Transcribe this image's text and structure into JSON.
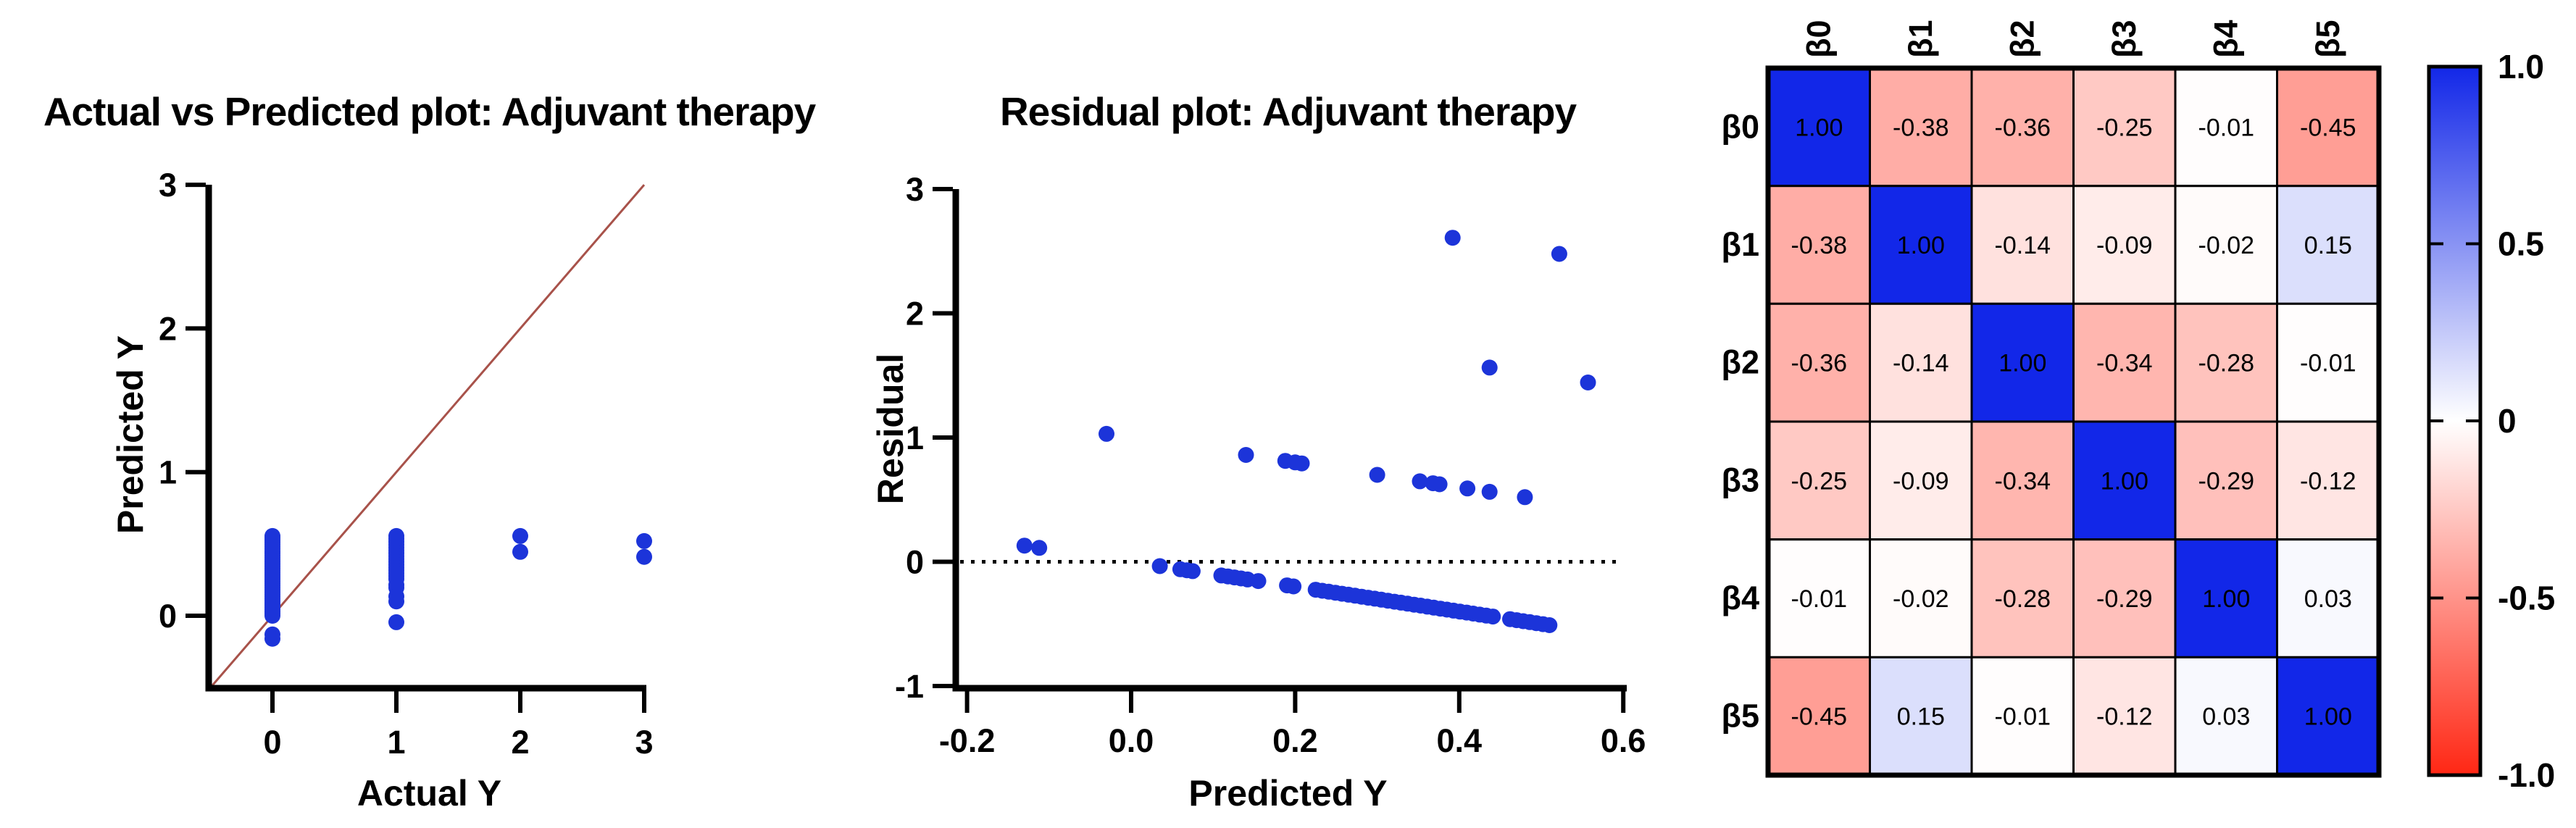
{
  "page": {
    "background": "#ffffff"
  },
  "chart_data": [
    {
      "type": "scatter",
      "name": "actual-vs-predicted",
      "title": "Actual vs Predicted plot: Adjuvant therapy",
      "xlabel": "Actual Y",
      "ylabel": "Predicted Y",
      "xlim": [
        -0.51,
        3.02
      ],
      "ylim": [
        -0.5,
        3.0
      ],
      "xticks": [
        0,
        1,
        2,
        3
      ],
      "xtick_labels": [
        "0",
        "1",
        "2",
        "3"
      ],
      "yticks": [
        0,
        1,
        2,
        3
      ],
      "ytick_labels": [
        "0",
        "1",
        "2",
        "3"
      ],
      "grid": false,
      "identity_line": {
        "x1": -0.5,
        "y1": -0.5,
        "x2": 3.0,
        "y2": 3.0,
        "color": "#a8524a"
      },
      "marker_color": "#1c34d9",
      "points": [
        [
          0,
          0.0
        ],
        [
          0,
          0.015
        ],
        [
          0,
          0.03
        ],
        [
          0,
          0.045
        ],
        [
          0,
          0.06
        ],
        [
          0,
          0.075
        ],
        [
          0,
          0.09
        ],
        [
          0,
          0.105
        ],
        [
          0,
          0.12
        ],
        [
          0,
          0.135
        ],
        [
          0,
          0.15
        ],
        [
          0,
          0.165
        ],
        [
          0,
          0.18
        ],
        [
          0,
          0.195
        ],
        [
          0,
          0.21
        ],
        [
          0,
          0.225
        ],
        [
          0,
          0.24
        ],
        [
          0,
          0.255
        ],
        [
          0,
          0.27
        ],
        [
          0,
          0.285
        ],
        [
          0,
          0.3
        ],
        [
          0,
          0.315
        ],
        [
          0,
          0.33
        ],
        [
          0,
          0.345
        ],
        [
          0,
          0.36
        ],
        [
          0,
          0.375
        ],
        [
          0,
          0.39
        ],
        [
          0,
          0.405
        ],
        [
          0,
          0.42
        ],
        [
          0,
          0.435
        ],
        [
          0,
          0.45
        ],
        [
          0,
          0.465
        ],
        [
          0,
          0.48
        ],
        [
          0,
          0.495
        ],
        [
          0,
          0.51
        ],
        [
          0,
          0.525
        ],
        [
          0,
          0.54
        ],
        [
          0,
          0.555
        ],
        [
          0,
          -0.13
        ],
        [
          0,
          -0.16
        ],
        [
          1,
          0.555
        ],
        [
          1,
          0.535
        ],
        [
          1,
          0.515
        ],
        [
          1,
          0.495
        ],
        [
          1,
          0.475
        ],
        [
          1,
          0.455
        ],
        [
          1,
          0.435
        ],
        [
          1,
          0.415
        ],
        [
          1,
          0.395
        ],
        [
          1,
          0.375
        ],
        [
          1,
          0.355
        ],
        [
          1,
          0.335
        ],
        [
          1,
          0.315
        ],
        [
          1,
          0.295
        ],
        [
          1,
          0.275
        ],
        [
          1,
          0.255
        ],
        [
          1,
          0.215
        ],
        [
          1,
          0.195
        ],
        [
          1,
          0.135
        ],
        [
          1,
          0.1
        ],
        [
          1,
          -0.045
        ],
        [
          2,
          0.445
        ],
        [
          2,
          0.555
        ],
        [
          3,
          0.41
        ],
        [
          3,
          0.52
        ]
      ]
    },
    {
      "type": "scatter",
      "name": "residual",
      "title": "Residual plot: Adjuvant therapy",
      "xlabel": "Predicted Y",
      "ylabel": "Residual",
      "xlim": [
        -0.21,
        0.61
      ],
      "ylim": [
        -1.0,
        3.0
      ],
      "xticks": [
        -0.2,
        0.0,
        0.2,
        0.4,
        0.6
      ],
      "xtick_labels": [
        "-0.2",
        "0.0",
        "0.2",
        "0.4",
        "0.6"
      ],
      "yticks": [
        -1,
        0,
        1,
        2,
        3
      ],
      "ytick_labels": [
        "-1",
        "0",
        "1",
        "2",
        "3"
      ],
      "grid": false,
      "zero_line": {
        "y": 0,
        "style": "dotted",
        "color": "#000000"
      },
      "marker_color": "#1c34d9",
      "points": [
        [
          -0.13,
          0.13
        ],
        [
          -0.112,
          0.112
        ],
        [
          0.035,
          -0.035
        ],
        [
          0.06,
          -0.06
        ],
        [
          0.068,
          -0.068
        ],
        [
          0.075,
          -0.075
        ],
        [
          0.11,
          -0.11
        ],
        [
          0.118,
          -0.118
        ],
        [
          0.126,
          -0.126
        ],
        [
          0.134,
          -0.134
        ],
        [
          0.142,
          -0.142
        ],
        [
          0.155,
          -0.155
        ],
        [
          0.19,
          -0.19
        ],
        [
          0.198,
          -0.198
        ],
        [
          0.225,
          -0.225
        ],
        [
          0.233,
          -0.233
        ],
        [
          0.241,
          -0.241
        ],
        [
          0.249,
          -0.249
        ],
        [
          0.257,
          -0.257
        ],
        [
          0.265,
          -0.265
        ],
        [
          0.273,
          -0.273
        ],
        [
          0.281,
          -0.281
        ],
        [
          0.289,
          -0.289
        ],
        [
          0.297,
          -0.297
        ],
        [
          0.305,
          -0.305
        ],
        [
          0.313,
          -0.313
        ],
        [
          0.321,
          -0.321
        ],
        [
          0.329,
          -0.329
        ],
        [
          0.337,
          -0.337
        ],
        [
          0.345,
          -0.345
        ],
        [
          0.353,
          -0.353
        ],
        [
          0.361,
          -0.361
        ],
        [
          0.369,
          -0.369
        ],
        [
          0.377,
          -0.377
        ],
        [
          0.385,
          -0.385
        ],
        [
          0.393,
          -0.393
        ],
        [
          0.401,
          -0.401
        ],
        [
          0.409,
          -0.409
        ],
        [
          0.417,
          -0.417
        ],
        [
          0.425,
          -0.425
        ],
        [
          0.433,
          -0.433
        ],
        [
          0.441,
          -0.441
        ],
        [
          0.462,
          -0.462
        ],
        [
          0.47,
          -0.47
        ],
        [
          0.478,
          -0.478
        ],
        [
          0.486,
          -0.486
        ],
        [
          0.494,
          -0.494
        ],
        [
          0.502,
          -0.502
        ],
        [
          0.51,
          -0.51
        ],
        [
          -0.03,
          1.03
        ],
        [
          0.14,
          0.86
        ],
        [
          0.188,
          0.812
        ],
        [
          0.2,
          0.8
        ],
        [
          0.208,
          0.792
        ],
        [
          0.3,
          0.7
        ],
        [
          0.352,
          0.648
        ],
        [
          0.368,
          0.632
        ],
        [
          0.376,
          0.624
        ],
        [
          0.41,
          0.59
        ],
        [
          0.437,
          0.563
        ],
        [
          0.48,
          0.52
        ],
        [
          0.437,
          1.563
        ],
        [
          0.557,
          1.443
        ],
        [
          0.392,
          2.608
        ],
        [
          0.522,
          2.478
        ]
      ]
    },
    {
      "type": "heatmap",
      "name": "coefficient-correlation-matrix",
      "labels": [
        "β0",
        "β1",
        "β2",
        "β3",
        "β4",
        "β5"
      ],
      "matrix": [
        [
          1.0,
          -0.38,
          -0.36,
          -0.25,
          -0.01,
          -0.45
        ],
        [
          -0.38,
          1.0,
          -0.14,
          -0.09,
          -0.02,
          0.15
        ],
        [
          -0.36,
          -0.14,
          1.0,
          -0.34,
          -0.28,
          -0.01
        ],
        [
          -0.25,
          -0.09,
          -0.34,
          1.0,
          -0.29,
          -0.12
        ],
        [
          -0.01,
          -0.02,
          -0.28,
          -0.29,
          1.0,
          0.03
        ],
        [
          -0.45,
          0.15,
          -0.01,
          -0.12,
          0.03,
          1.0
        ]
      ],
      "colorbar": {
        "min": -1,
        "max": 1,
        "tick_values": [
          1,
          0.5,
          0,
          -0.5,
          -1
        ],
        "tick_labels": [
          "1.0",
          "0.5",
          "0",
          "-0.5",
          "-1.0"
        ],
        "pos_color": "#1227e8",
        "mid_color": "#ffffff",
        "neg_color": "#ff2714"
      }
    }
  ]
}
